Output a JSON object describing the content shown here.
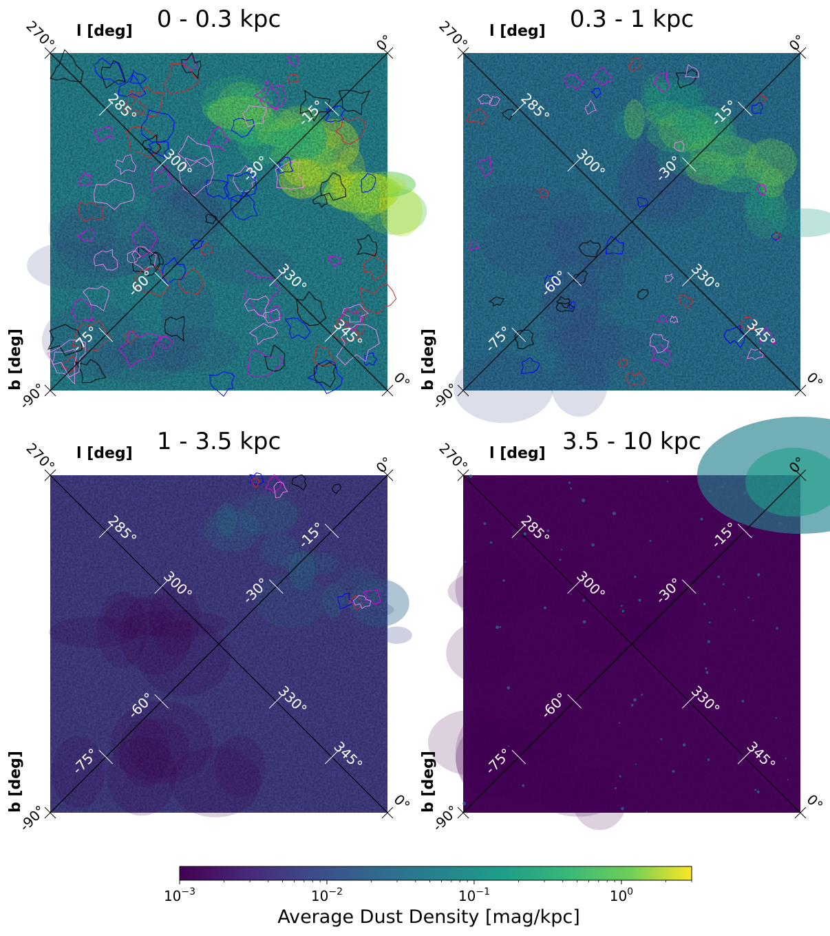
{
  "chart_data": [
    {
      "type": "heatmap",
      "title": "0 - 0.3 kpc",
      "xlabel": "l [deg]",
      "ylabel": "b [deg]",
      "corner_labels": {
        "top_left": "270°",
        "top_right": "0°",
        "bottom_left": "-90°",
        "bottom_right": "0°"
      },
      "l_ticks": [
        "285°",
        "300°",
        "330°",
        "345°"
      ],
      "b_ticks": [
        "-15°",
        "-30°",
        "-60°",
        "-75°"
      ],
      "dust_level": "high",
      "contours": true
    },
    {
      "type": "heatmap",
      "title": "0.3 - 1 kpc",
      "xlabel": "l [deg]",
      "ylabel": "b [deg]",
      "corner_labels": {
        "top_left": "270°",
        "top_right": "0°",
        "bottom_left": "-90°",
        "bottom_right": "0°"
      },
      "l_ticks": [
        "285°",
        "300°",
        "330°",
        "345°"
      ],
      "b_ticks": [
        "-15°",
        "-30°",
        "-60°",
        "-75°"
      ],
      "dust_level": "medium",
      "contours": true
    },
    {
      "type": "heatmap",
      "title": "1 - 3.5 kpc",
      "xlabel": "l [deg]",
      "ylabel": "b [deg]",
      "corner_labels": {
        "top_left": "270°",
        "top_right": "0°",
        "bottom_left": "-90°",
        "bottom_right": "0°"
      },
      "l_ticks": [
        "285°",
        "300°",
        "330°",
        "345°"
      ],
      "b_ticks": [
        "-15°",
        "-30°",
        "-60°",
        "-75°"
      ],
      "dust_level": "low",
      "contours": true
    },
    {
      "type": "heatmap",
      "title": "3.5 - 10 kpc",
      "xlabel": "l [deg]",
      "ylabel": "b [deg]",
      "corner_labels": {
        "top_left": "270°",
        "top_right": "0°",
        "bottom_left": "-90°",
        "bottom_right": "0°"
      },
      "l_ticks": [
        "285°",
        "300°",
        "330°",
        "345°"
      ],
      "b_ticks": [
        "-15°",
        "-30°",
        "-60°",
        "-75°"
      ],
      "dust_level": "very-low",
      "contours": false
    }
  ],
  "colorbar": {
    "label": "Average Dust Density [mag/kpc]",
    "scale": "log",
    "range": [
      0.001,
      3
    ],
    "ticks": [
      {
        "value": 0.001,
        "base": "10",
        "exp": "−3"
      },
      {
        "value": 0.01,
        "base": "10",
        "exp": "−2"
      },
      {
        "value": 0.1,
        "base": "10",
        "exp": "−1"
      },
      {
        "value": 1,
        "base": "10",
        "exp": "0"
      }
    ],
    "colormap": "viridis"
  },
  "contour_colors": [
    "#000000",
    "#0000ff",
    "#d62728",
    "#e000e0",
    "#ee82ee"
  ]
}
